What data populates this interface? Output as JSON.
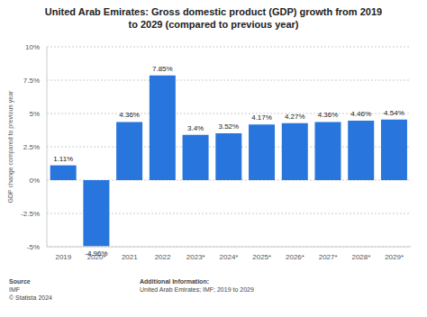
{
  "chart_data": {
    "type": "bar",
    "title": "United Arab Emirates: Gross domestic product (GDP) growth from 2019 to 2029 (compared to previous year)",
    "y_label": "GDP change compared to previous year",
    "categories": [
      "2019",
      "2020*",
      "2021",
      "2022",
      "2023*",
      "2024*",
      "2025*",
      "2026*",
      "2027*",
      "2028*",
      "2029*"
    ],
    "values": [
      1.11,
      -4.96,
      4.36,
      7.85,
      3.4,
      3.52,
      4.17,
      4.27,
      4.36,
      4.46,
      4.54
    ],
    "value_labels": [
      "1.11%",
      "-4.96%",
      "4.36%",
      "7.85%",
      "3.4%",
      "3.52%",
      "4.17%",
      "4.27%",
      "4.36%",
      "4.46%",
      "4.54%"
    ],
    "color": "#2876dd",
    "ylim": [
      -5,
      10
    ],
    "yticks": [
      {
        "value": -5,
        "label": "-5%"
      },
      {
        "value": -2.5,
        "label": "-2.5%"
      },
      {
        "value": 0,
        "label": "0%"
      },
      {
        "value": 2.5,
        "label": "2.5%"
      },
      {
        "value": 5,
        "label": "5%"
      },
      {
        "value": 7.5,
        "label": "7.5%"
      },
      {
        "value": 10,
        "label": "10%"
      }
    ],
    "grid": true,
    "data_labels": true,
    "source_label": "Source",
    "source": "IMF",
    "copyright": "© Statista 2024",
    "info_label": "Additional Information:",
    "info": "United Arab Emirates; IMF; 2019 to 2029"
  }
}
